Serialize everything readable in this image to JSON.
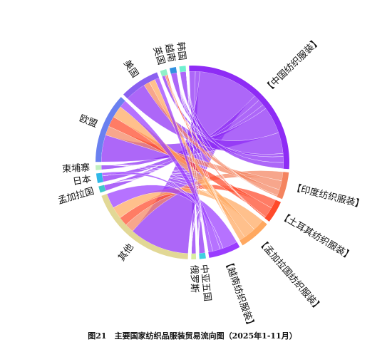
{
  "chart_data": {
    "type": "chord",
    "caption": "图21　主要国家纺织品服装贸易流向图（2025年1-11月）",
    "sources": [
      {
        "name": "【中国纺织服装】",
        "color": "#8e2cf5"
      },
      {
        "name": "【印度纺织服装】",
        "color": "#f4845f"
      },
      {
        "name": "【土耳其纺织服装】",
        "color": "#ff4a2a"
      },
      {
        "name": "【孟加拉国纺织服装】",
        "color": "#ffa860"
      },
      {
        "name": "【越南纺织服装】",
        "color": "#9a3cff"
      }
    ],
    "targets": [
      {
        "name": "中亚五国",
        "color": "#40d0e0"
      },
      {
        "name": "俄罗斯",
        "color": "#d8eca0"
      },
      {
        "name": "其他",
        "color": "#e2d896"
      },
      {
        "name": "孟加拉国",
        "color": "#40c8c8"
      },
      {
        "name": "日本",
        "color": "#30b8e8"
      },
      {
        "name": "柬埔寨",
        "color": "#c0f0c0"
      },
      {
        "name": "欧盟",
        "color": "#6a80f0"
      },
      {
        "name": "美国",
        "color": "#8a60f0"
      },
      {
        "name": "英国",
        "color": "#90f0c8"
      },
      {
        "name": "越南",
        "color": "#3090e0"
      },
      {
        "name": "韩国",
        "color": "#70f0d0"
      }
    ],
    "matrix": [
      [
        4,
        3,
        40,
        4,
        4,
        3,
        18,
        14,
        2,
        4,
        4
      ],
      [
        0,
        0,
        6,
        0,
        0,
        0,
        6,
        4,
        1,
        0,
        0
      ],
      [
        0,
        0,
        6,
        0,
        0,
        0,
        7,
        0,
        1,
        0,
        0
      ],
      [
        0,
        0,
        8,
        0,
        0,
        0,
        8,
        4,
        0,
        0,
        0
      ],
      [
        0,
        0,
        10,
        0,
        2,
        0,
        5,
        3,
        0,
        0,
        0
      ]
    ]
  }
}
